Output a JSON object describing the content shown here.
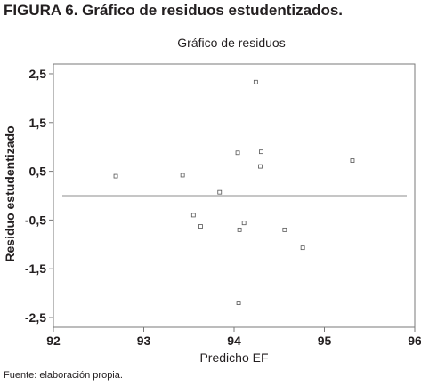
{
  "figure": {
    "label": "FIGURA 6.",
    "caption": "Gráfico de residuos estudentizados.",
    "source": "Fuente: elaboración propia."
  },
  "chart_data": {
    "type": "scatter",
    "title": "Gráfico de residuos",
    "xlabel": "Predicho EF",
    "ylabel": "Residuo estudentizado",
    "xlim": [
      92,
      96
    ],
    "ylim": [
      -2.7,
      2.7
    ],
    "xticks": [
      92,
      93,
      94,
      95,
      96
    ],
    "xtick_labels": [
      "92",
      "93",
      "94",
      "95",
      "96"
    ],
    "yticks": [
      2.5,
      1.5,
      0.5,
      -0.5,
      -1.5,
      -2.5
    ],
    "ytick_labels": [
      "2,5",
      "1,5",
      "0,5",
      "-0,5",
      "-1,5",
      "-2,5"
    ],
    "reference_line_y": 0,
    "grid": false,
    "marker_color": "#555555",
    "reference_line_color": "#b4b4b4",
    "points": [
      {
        "x": 92.69,
        "y": 0.4
      },
      {
        "x": 93.43,
        "y": 0.42
      },
      {
        "x": 93.55,
        "y": -0.4
      },
      {
        "x": 93.63,
        "y": -0.63
      },
      {
        "x": 93.84,
        "y": 0.07
      },
      {
        "x": 94.04,
        "y": 0.88
      },
      {
        "x": 94.05,
        "y": -2.2
      },
      {
        "x": 94.06,
        "y": -0.7
      },
      {
        "x": 94.11,
        "y": -0.56
      },
      {
        "x": 94.24,
        "y": 2.33
      },
      {
        "x": 94.29,
        "y": 0.6
      },
      {
        "x": 94.3,
        "y": 0.9
      },
      {
        "x": 94.56,
        "y": -0.7
      },
      {
        "x": 94.76,
        "y": -1.07
      },
      {
        "x": 95.31,
        "y": 0.72
      }
    ]
  }
}
